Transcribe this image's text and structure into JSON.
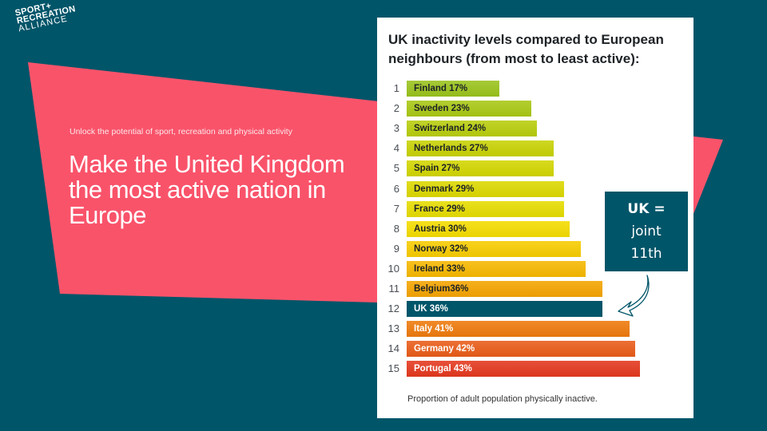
{
  "brand": {
    "logo_lines": [
      "SPORT+",
      "RECREATION",
      "ALLIANCE"
    ],
    "colors": {
      "background": "#005569",
      "accent_pink": "#f9536a",
      "card": "#ffffff",
      "uk_bar": "#005569"
    }
  },
  "hero": {
    "tagline": "Unlock the potential of sport, recreation and physical activity",
    "headline": "Make the United Kingdom the most active nation in Europe"
  },
  "callout": {
    "line1": "UK =",
    "line2": "joint",
    "line3": "11th",
    "icon": "curved-arrow-icon"
  },
  "chart_data": {
    "type": "bar",
    "orientation": "horizontal",
    "title": "UK inactivity levels compared to European neighbours (from most to least active):",
    "xlabel": "",
    "ylabel": "",
    "footnote": "Proportion of adult population physically inactive.",
    "unit": "%",
    "xlim": [
      0,
      43
    ],
    "grid": false,
    "highlight": "UK",
    "categories": [
      "Finland",
      "Sweden",
      "Switzerland",
      "Netherlands",
      "Spain",
      "Denmark",
      "France",
      "Austria",
      "Norway",
      "Ireland",
      "Belgium",
      "UK",
      "Italy",
      "Germany",
      "Portugal"
    ],
    "ranks": [
      1,
      2,
      3,
      4,
      5,
      6,
      7,
      8,
      9,
      10,
      11,
      12,
      13,
      14,
      15
    ],
    "labels": [
      "Finland 17%",
      "Sweden 23%",
      "Switzerland 24%",
      "Netherlands 27%",
      "Spain 27%",
      "Denmark 29%",
      "France 29%",
      "Austria 30%",
      "Norway 32%",
      "Ireland 33%",
      "Belgium36%",
      "UK 36%",
      "Italy 41%",
      "Germany 42%",
      "Portugal 43%"
    ],
    "values": [
      17,
      23,
      24,
      27,
      27,
      29,
      29,
      30,
      32,
      33,
      36,
      36,
      41,
      42,
      43
    ],
    "bar_colors": [
      "#9ac31c",
      "#a9c814",
      "#b8cd0c",
      "#c8d204",
      "#d2d600",
      "#dcd800",
      "#e6dc00",
      "#f4dc00",
      "#f7cc00",
      "#f6b800",
      "#f4a400",
      "#005569",
      "#ee7a0c",
      "#e95c18",
      "#e4381e"
    ],
    "label_colors": [
      "#1d2226",
      "#1d2226",
      "#1d2226",
      "#1d2226",
      "#1d2226",
      "#1d2226",
      "#1d2226",
      "#1d2226",
      "#1d2226",
      "#1d2226",
      "#1d2226",
      "#ffffff",
      "#ffffff",
      "#ffffff",
      "#ffffff"
    ]
  }
}
